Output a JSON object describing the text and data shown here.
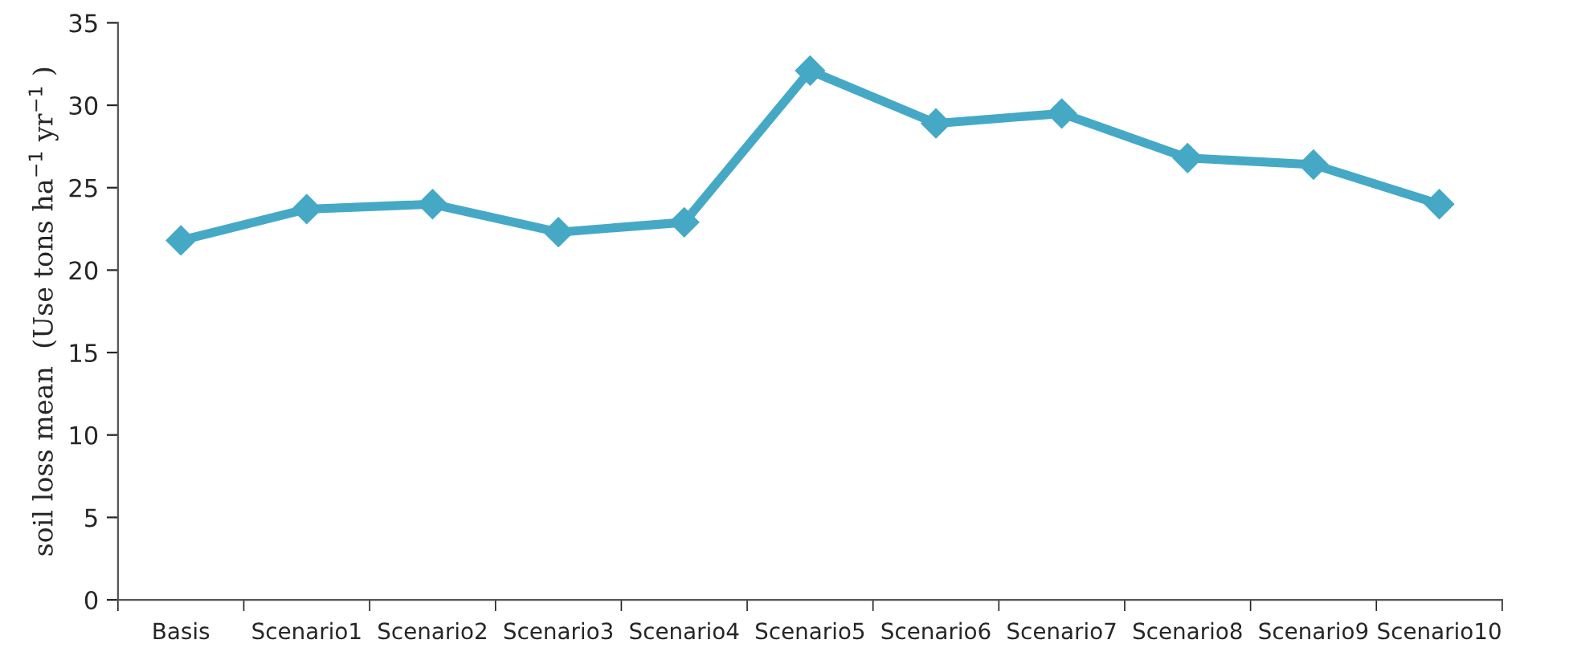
{
  "chart_data": {
    "type": "line",
    "ylabel": "soil loss mean  (Use tons ha$^{−1}$ yr$^{−1}$ )",
    "categories": [
      "Basis",
      "Scenario1",
      "Scenario2",
      "Scenario3",
      "Scenario4",
      "Scenario5",
      "Scenario6",
      "Scenario7",
      "Scenario8",
      "Scenario9",
      "Scenario10"
    ],
    "series": [
      {
        "color": "#45a9c6",
        "values": [
          21.8,
          23.7,
          24.0,
          22.3,
          22.9,
          32.1,
          28.9,
          29.5,
          26.8,
          26.4,
          24.0
        ]
      }
    ],
    "ylim": [
      0,
      35
    ],
    "yticks": [
      0,
      5,
      10,
      15,
      20,
      25,
      30,
      35
    ],
    "marker": "diamond",
    "line_style": "solid"
  }
}
